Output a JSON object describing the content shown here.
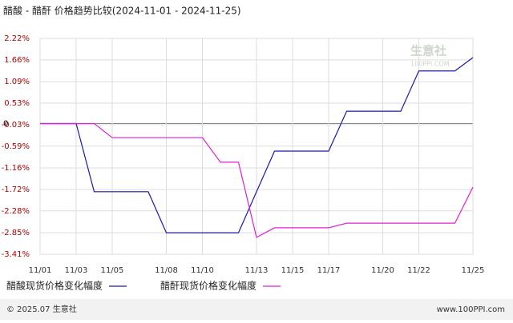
{
  "chart_data": {
    "type": "line",
    "title": "醋酸 - 醋酐 价格趋势比较(2024-11-01 - 2024-11-25)",
    "categories": [
      "11/01",
      null,
      "11/03",
      null,
      "11/05",
      null,
      null,
      "11/08",
      null,
      "11/10",
      null,
      null,
      "11/13",
      null,
      "11/15",
      null,
      "11/17",
      null,
      null,
      "11/20",
      null,
      "11/22",
      null,
      null,
      "11/25"
    ],
    "series": [
      {
        "name": "醋酸现货价格变化幅度",
        "color": "#1a1aa6",
        "values": [
          0,
          0,
          0,
          -1.78,
          -1.78,
          -1.78,
          -1.78,
          -2.85,
          -2.85,
          -2.85,
          -2.85,
          -2.85,
          -1.78,
          -0.72,
          -0.72,
          -0.72,
          -0.72,
          0.32,
          0.32,
          0.32,
          0.32,
          1.37,
          1.37,
          1.37,
          1.72
        ]
      },
      {
        "name": "醋酐现货价格变化幅度",
        "color": "#e020d0",
        "values": [
          0,
          0,
          0,
          0,
          -0.37,
          -0.37,
          -0.37,
          -0.37,
          -0.37,
          -0.37,
          -1.01,
          -1.01,
          -2.97,
          -2.72,
          -2.72,
          -2.72,
          -2.72,
          -2.6,
          -2.6,
          -2.6,
          -2.6,
          -2.6,
          -2.6,
          -2.6,
          -1.66
        ]
      }
    ],
    "ylim": [
      -3.41,
      2.22
    ],
    "yticks": [
      {
        "value": 2.22,
        "label": "2.22%"
      },
      {
        "value": 1.66,
        "label": "1.66%"
      },
      {
        "value": 1.09,
        "label": "1.09%"
      },
      {
        "value": 0.53,
        "label": "0.53%"
      },
      0,
      {
        "value": -0.03,
        "label": "-0.03%"
      },
      {
        "value": -0.59,
        "label": "-0.59%"
      },
      {
        "value": -1.16,
        "label": "-1.16%"
      },
      {
        "value": -1.72,
        "label": "-1.72%"
      },
      {
        "value": -2.28,
        "label": "-2.28%"
      },
      {
        "value": -2.85,
        "label": "-2.85%"
      },
      {
        "value": -3.41,
        "label": "-3.41%"
      }
    ],
    "grid": true,
    "watermark": "生意社",
    "watermark_url": "100PPI.COM",
    "footer_left": "© 2025.07 生意社",
    "footer_right": "www.100PPI.com"
  }
}
